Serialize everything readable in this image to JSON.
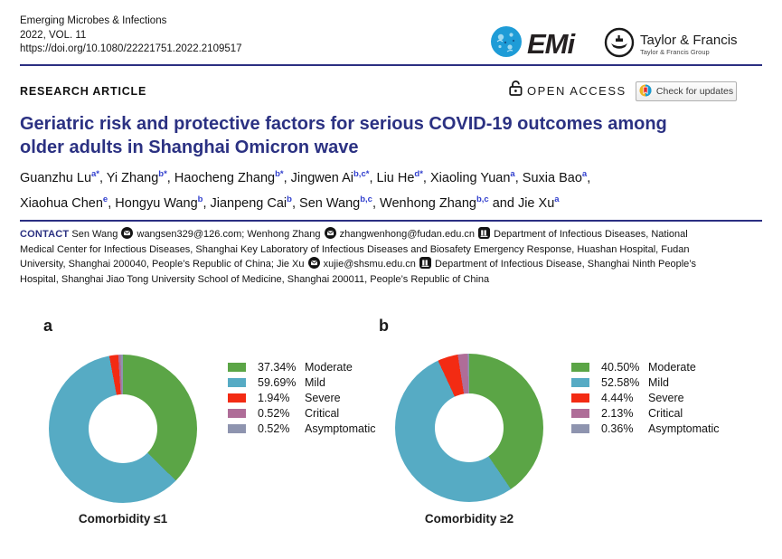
{
  "journal": {
    "name": "Emerging Microbes & Infections",
    "volume": "2022, VOL. 11",
    "doi": "https://doi.org/10.1080/22221751.2022.2109517"
  },
  "logos": {
    "emi_text": "EMi",
    "tf_name": "Taylor & Francis",
    "tf_group": "Taylor & Francis Group"
  },
  "article": {
    "type_label": "RESEARCH ARTICLE",
    "open_access_label": "OPEN ACCESS",
    "check_updates_label": "Check for updates",
    "title_line1": "Geriatric risk and protective factors for serious COVID-19 outcomes among",
    "title_line2": "older adults in Shanghai Omicron wave"
  },
  "authors": {
    "line1": [
      {
        "name": "Guanzhu Lu",
        "sup": "a*",
        "after": ", "
      },
      {
        "name": "Yi Zhang",
        "sup": "b*",
        "after": ", "
      },
      {
        "name": "Haocheng Zhang",
        "sup": "b*",
        "after": ", "
      },
      {
        "name": "Jingwen Ai",
        "sup": "b,c*",
        "after": ", "
      },
      {
        "name": "Liu He",
        "sup": "d*",
        "after": ", "
      },
      {
        "name": "Xiaoling Yuan",
        "sup": "a",
        "after": ", "
      },
      {
        "name": "Suxia Bao",
        "sup": "a",
        "after": ","
      }
    ],
    "line2": [
      {
        "name": "Xiaohua Chen",
        "sup": "e",
        "after": ", "
      },
      {
        "name": "Hongyu Wang",
        "sup": "b",
        "after": ", "
      },
      {
        "name": "Jianpeng Cai",
        "sup": "b",
        "after": ", "
      },
      {
        "name": "Sen Wang",
        "sup": "b,c",
        "after": ", "
      },
      {
        "name": "Wenhong Zhang",
        "sup": "b,c",
        "after": " and "
      },
      {
        "name": "Jie Xu",
        "sup": "a",
        "after": ""
      }
    ]
  },
  "contact": {
    "lines": [
      [
        {
          "k": "b",
          "v": "CONTACT"
        },
        {
          "k": "t",
          "v": " Sen Wang "
        },
        {
          "k": "m"
        },
        {
          "k": "t",
          "v": " wangsen329@126.com; Wenhong Zhang "
        },
        {
          "k": "m"
        },
        {
          "k": "t",
          "v": " zhangwenhong@fudan.edu.cn "
        },
        {
          "k": "o"
        },
        {
          "k": "t",
          "v": " Department of Infectious Diseases, National"
        }
      ],
      [
        {
          "k": "t",
          "v": "Medical Center for Infectious Diseases, Shanghai Key Laboratory of Infectious Diseases and Biosafety Emergency Response, Huashan Hospital, Fudan"
        }
      ],
      [
        {
          "k": "t",
          "v": "University, Shanghai 200040, People’s Republic of China; Jie Xu "
        },
        {
          "k": "m"
        },
        {
          "k": "t",
          "v": " xujie@shsmu.edu.cn "
        },
        {
          "k": "o"
        },
        {
          "k": "t",
          "v": " Department of Infectious Disease, Shanghai Ninth People’s"
        }
      ],
      [
        {
          "k": "t",
          "v": "Hospital, Shanghai Jiao Tong University School of Medicine, Shanghai 200011, People’s Republic of China"
        }
      ]
    ]
  },
  "colors": {
    "navy_accent": "#2b2f82",
    "superscript_blue": "#3240ce",
    "slice_colors": [
      "#5ba546",
      "#56abc4",
      "#f32b13",
      "#af6d98",
      "#8e94af"
    ]
  },
  "chart_data": [
    {
      "type": "pie",
      "donut": true,
      "panel_label": "a",
      "title": "Comorbidity ≤1",
      "labels": [
        "Moderate",
        "Mild",
        "Severe",
        "Critical",
        "Asymptomatic"
      ],
      "values": [
        37.34,
        59.69,
        1.94,
        0.52,
        0.52
      ],
      "unit": "%",
      "legend_position": "right",
      "start_angle_deg": 0,
      "direction": "clockwise"
    },
    {
      "type": "pie",
      "donut": true,
      "panel_label": "b",
      "title": "Comorbidity ≥2",
      "labels": [
        "Moderate",
        "Mild",
        "Severe",
        "Critical",
        "Asymptomatic"
      ],
      "values": [
        40.5,
        52.58,
        4.44,
        2.13,
        0.36
      ],
      "unit": "%",
      "legend_position": "right",
      "start_angle_deg": 0,
      "direction": "clockwise"
    }
  ]
}
